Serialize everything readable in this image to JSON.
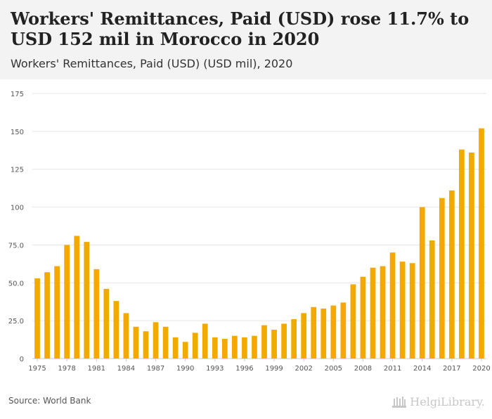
{
  "header": {
    "title": "Workers' Remittances, Paid (USD) rose 11.7% to USD 152 mil in Morocco in 2020",
    "subtitle": "Workers' Remittances, Paid (USD) (USD mil), 2020"
  },
  "footer": {
    "source": "Source: World Bank",
    "logo_text": "HelgiLibrary."
  },
  "colors": {
    "bar": "#f2a900",
    "grid": "#e6e6e6",
    "axis_text": "#555555",
    "header_bg": "#f3f3f3"
  },
  "chart_data": {
    "type": "bar",
    "x": [
      1975,
      1976,
      1977,
      1978,
      1979,
      1980,
      1981,
      1982,
      1983,
      1984,
      1985,
      1986,
      1987,
      1988,
      1989,
      1990,
      1991,
      1992,
      1993,
      1994,
      1995,
      1996,
      1997,
      1998,
      1999,
      2000,
      2001,
      2002,
      2003,
      2004,
      2005,
      2006,
      2007,
      2008,
      2009,
      2010,
      2011,
      2012,
      2013,
      2014,
      2015,
      2016,
      2017,
      2018,
      2019,
      2020
    ],
    "values": [
      53,
      57,
      61,
      75,
      81,
      77,
      59,
      46,
      38,
      30,
      21,
      18,
      24,
      21,
      14,
      11,
      17,
      23,
      14,
      13,
      15,
      14,
      15,
      22,
      19,
      23,
      26,
      30,
      34,
      33,
      35,
      37,
      49,
      54,
      60,
      61,
      70,
      64,
      63,
      100,
      78,
      106,
      111,
      138,
      136,
      152
    ],
    "x_tick_labels": [
      "1975",
      "1978",
      "1981",
      "1984",
      "1987",
      "1990",
      "1993",
      "1996",
      "1999",
      "2002",
      "2005",
      "2008",
      "2011",
      "2014",
      "2017",
      "2020"
    ],
    "y_tick_labels": [
      "0",
      "25.0",
      "50.0",
      "75.0",
      "100",
      "125",
      "150",
      "175"
    ],
    "ylim": [
      0,
      175
    ],
    "grid": true,
    "legend": "none"
  }
}
